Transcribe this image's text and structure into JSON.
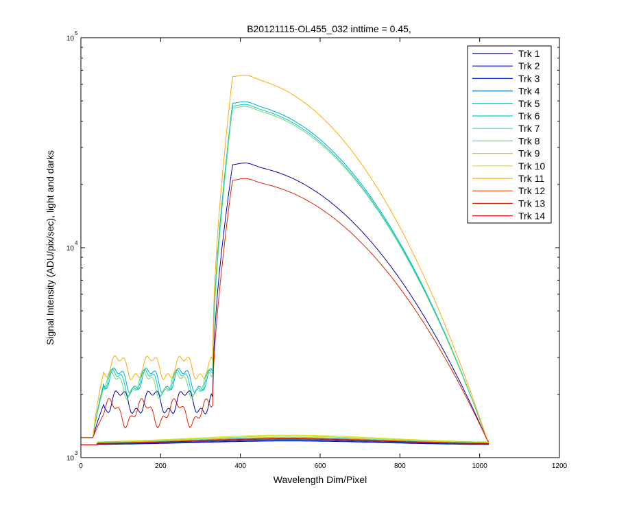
{
  "chart_data": {
    "type": "line",
    "title": "B20121115-OL455_032 inttime = 0.45,",
    "xlabel": "Wavelength Dim/Pixel",
    "ylabel": "Signal Intensity (ADU/pix/sec), light and darks",
    "xlim": [
      0,
      1200
    ],
    "ylim": [
      1000,
      100000
    ],
    "yscale": "log",
    "xticks": [
      "0",
      "200",
      "400",
      "600",
      "800",
      "1000",
      "1200"
    ],
    "xtick_values": [
      0,
      200,
      400,
      600,
      800,
      1000,
      1200
    ],
    "yticks": [
      {
        "base": "10",
        "exp": "3",
        "value": 1000
      },
      {
        "base": "10",
        "exp": "4",
        "value": 10000
      },
      {
        "base": "10",
        "exp": "5",
        "value": 100000
      }
    ],
    "grid": false,
    "legend_position": "top-right",
    "series": [
      {
        "name": "Trk 1",
        "color": "#0000aa",
        "peak": 25500,
        "plateau": 1850,
        "dark": 1245,
        "phase": 0.3
      },
      {
        "name": "Trk 2",
        "color": "#0000cc",
        "peak": 1200,
        "plateau": 1150,
        "dark": 1150,
        "phase": 0.0,
        "dark_track": true
      },
      {
        "name": "Trk 3",
        "color": "#0033cc",
        "peak": 1210,
        "plateau": 1155,
        "dark": 1155,
        "phase": 0.0,
        "dark_track": true
      },
      {
        "name": "Trk 4",
        "color": "#0066aa",
        "peak": 1220,
        "plateau": 1160,
        "dark": 1160,
        "phase": 0.0,
        "dark_track": true
      },
      {
        "name": "Trk 5",
        "color": "#00aacc",
        "peak": 50000,
        "plateau": 2350,
        "dark": 1245,
        "phase": 0.9
      },
      {
        "name": "Trk 6",
        "color": "#00cccc",
        "peak": 48500,
        "plateau": 2300,
        "dark": 1245,
        "phase": 1.3
      },
      {
        "name": "Trk 7",
        "color": "#44dddd",
        "peak": 1250,
        "plateau": 1170,
        "dark": 1170,
        "phase": 0.0,
        "dark_track": true
      },
      {
        "name": "Trk 8",
        "color": "#66dd66",
        "peak": 47500,
        "plateau": 2250,
        "dark": 1245,
        "phase": 1.7
      },
      {
        "name": "Trk 9",
        "color": "#aadd22",
        "peak": 1265,
        "plateau": 1175,
        "dark": 1175,
        "phase": 0.0,
        "dark_track": true
      },
      {
        "name": "Trk 10",
        "color": "#dddd00",
        "peak": 1280,
        "plateau": 1180,
        "dark": 1180,
        "phase": 0.0,
        "dark_track": true
      },
      {
        "name": "Trk 11",
        "color": "#ffaa00",
        "peak": 67000,
        "plateau": 2700,
        "dark": 1245,
        "phase": 0.6
      },
      {
        "name": "Trk 12",
        "color": "#ff5500",
        "peak": 1240,
        "plateau": 1165,
        "dark": 1165,
        "phase": 0.0,
        "dark_track": true
      },
      {
        "name": "Trk 13",
        "color": "#dd2200",
        "peak": 21500,
        "plateau": 1650,
        "dark": 1245,
        "phase": 2.1
      },
      {
        "name": "Trk 14",
        "color": "#cc0000",
        "peak": 1230,
        "plateau": 1160,
        "dark": 1160,
        "phase": 0.0,
        "dark_track": true
      }
    ]
  }
}
